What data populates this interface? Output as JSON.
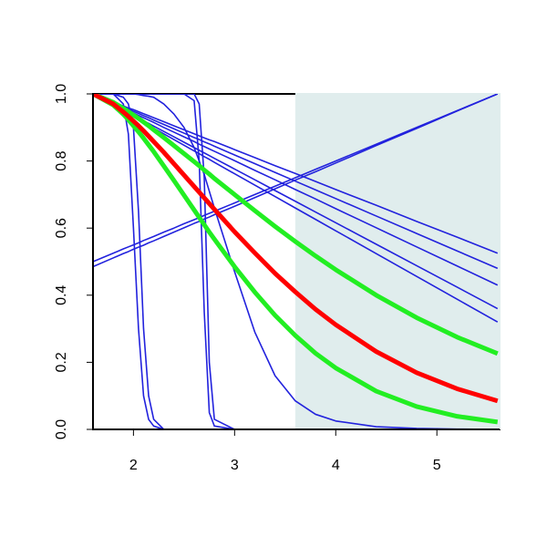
{
  "chart_data": {
    "type": "line",
    "x": [
      1.6,
      1.8,
      1.9,
      1.95,
      2.0,
      2.05,
      2.1,
      2.15,
      2.2,
      2.3,
      2.4,
      2.5,
      2.6,
      2.65,
      2.7,
      2.75,
      2.8,
      3.0,
      3.2,
      3.4,
      3.6,
      3.8,
      4.0,
      4.4,
      4.8,
      5.2,
      5.6
    ],
    "xlim": [
      1.6,
      5.62
    ],
    "ylim": [
      0,
      1
    ],
    "xticks": [
      2,
      3,
      4,
      5
    ],
    "yticks": [
      {
        "value": 0,
        "label": "0.0"
      },
      0.2,
      0.4,
      0.6,
      0.8,
      {
        "value": 1,
        "label": "1.0"
      }
    ],
    "highlight": {
      "xlim": [
        3.6,
        5.62
      ],
      "color": "#e0eded"
    },
    "series": [
      {
        "color": "#2222dd",
        "style": "thin",
        "values": [
          1,
          1,
          0.97,
          0.88,
          0.6,
          0.3,
          0.1,
          0.03,
          0.01,
          0,
          0,
          0,
          0,
          0,
          0,
          0,
          0,
          0,
          0,
          0,
          0,
          0,
          0,
          0,
          0,
          0,
          0
        ]
      },
      {
        "color": "#2222dd",
        "style": "thin",
        "values": [
          1,
          1,
          0.99,
          0.97,
          0.9,
          0.65,
          0.3,
          0.1,
          0.03,
          0,
          0,
          0,
          0,
          0,
          0,
          0,
          0,
          0,
          0,
          0,
          0,
          0,
          0,
          0,
          0,
          0,
          0
        ]
      },
      {
        "color": "#2222dd",
        "style": "thin",
        "values": [
          1,
          1,
          1,
          1,
          1,
          1,
          1,
          1,
          1,
          1,
          1,
          1,
          0.98,
          0.8,
          0.35,
          0.05,
          0.01,
          0,
          0,
          0,
          0,
          0,
          0,
          0,
          0,
          0,
          0
        ]
      },
      {
        "color": "#2222dd",
        "style": "thin",
        "values": [
          1,
          1,
          1,
          1,
          1,
          1,
          1,
          1,
          1,
          1,
          1,
          1,
          1,
          0.97,
          0.75,
          0.2,
          0.03,
          0,
          0,
          0,
          0,
          0,
          0,
          0,
          0,
          0,
          0
        ]
      },
      {
        "color": "#2222dd",
        "style": "thin",
        "values": [
          1,
          1,
          1,
          1,
          1,
          0.998,
          0.995,
          0.993,
          0.99,
          0.97,
          0.94,
          0.9,
          0.84,
          0.8,
          0.76,
          0.71,
          0.66,
          0.47,
          0.29,
          0.16,
          0.085,
          0.045,
          0.025,
          0.008,
          0.003,
          0.001,
          0
        ]
      },
      {
        "color": "#2222dd",
        "style": "thin",
        "values": [
          1,
          0.976,
          0.964,
          0.958,
          0.953,
          0.947,
          0.941,
          0.935,
          0.929,
          0.917,
          0.905,
          0.893,
          0.881,
          0.875,
          0.869,
          0.863,
          0.858,
          0.834,
          0.81,
          0.786,
          0.763,
          0.739,
          0.715,
          0.668,
          0.62,
          0.573,
          0.525
        ]
      },
      {
        "color": "#2222dd",
        "style": "thin",
        "values": [
          1,
          0.974,
          0.961,
          0.955,
          0.948,
          0.942,
          0.935,
          0.929,
          0.922,
          0.909,
          0.896,
          0.883,
          0.87,
          0.864,
          0.857,
          0.851,
          0.844,
          0.818,
          0.792,
          0.766,
          0.74,
          0.714,
          0.688,
          0.636,
          0.584,
          0.532,
          0.48
        ]
      },
      {
        "color": "#2222dd",
        "style": "thin",
        "values": [
          1,
          0.972,
          0.957,
          0.95,
          0.943,
          0.936,
          0.929,
          0.922,
          0.915,
          0.9,
          0.886,
          0.872,
          0.858,
          0.85,
          0.843,
          0.836,
          0.829,
          0.801,
          0.772,
          0.744,
          0.715,
          0.687,
          0.658,
          0.601,
          0.544,
          0.487,
          0.43
        ]
      },
      {
        "color": "#2222dd",
        "style": "thin",
        "values": [
          1,
          0.968,
          0.952,
          0.944,
          0.936,
          0.928,
          0.92,
          0.912,
          0.904,
          0.888,
          0.872,
          0.856,
          0.84,
          0.832,
          0.824,
          0.816,
          0.808,
          0.776,
          0.744,
          0.712,
          0.68,
          0.648,
          0.616,
          0.552,
          0.488,
          0.424,
          0.36
        ]
      },
      {
        "color": "#2222dd",
        "style": "thin",
        "values": [
          1,
          0.966,
          0.949,
          0.941,
          0.932,
          0.924,
          0.915,
          0.907,
          0.898,
          0.881,
          0.864,
          0.847,
          0.83,
          0.822,
          0.813,
          0.805,
          0.796,
          0.762,
          0.728,
          0.694,
          0.66,
          0.626,
          0.592,
          0.524,
          0.456,
          0.388,
          0.32
        ]
      },
      {
        "color": "#2222dd",
        "style": "thin",
        "values": [
          0.5,
          0.525,
          0.538,
          0.544,
          0.55,
          0.556,
          0.563,
          0.569,
          0.575,
          0.588,
          0.6,
          0.613,
          0.625,
          0.631,
          0.638,
          0.644,
          0.65,
          0.675,
          0.7,
          0.725,
          0.75,
          0.775,
          0.8,
          0.85,
          0.9,
          0.95,
          1
        ]
      },
      {
        "color": "#2222dd",
        "style": "thin",
        "values": [
          0.485,
          0.511,
          0.524,
          0.53,
          0.537,
          0.543,
          0.549,
          0.556,
          0.562,
          0.575,
          0.588,
          0.601,
          0.614,
          0.62,
          0.627,
          0.633,
          0.64,
          0.665,
          0.691,
          0.717,
          0.743,
          0.768,
          0.794,
          0.846,
          0.897,
          0.949,
          1
        ]
      },
      {
        "color": "#22ee22",
        "style": "thick",
        "values": [
          1,
          0.975,
          0.957,
          0.947,
          0.937,
          0.927,
          0.916,
          0.905,
          0.893,
          0.87,
          0.846,
          0.822,
          0.798,
          0.786,
          0.773,
          0.761,
          0.748,
          0.7,
          0.652,
          0.605,
          0.56,
          0.517,
          0.476,
          0.4,
          0.333,
          0.275,
          0.226
        ]
      },
      {
        "color": "#22ee22",
        "style": "thick",
        "values": [
          1,
          0.967,
          0.939,
          0.923,
          0.905,
          0.887,
          0.868,
          0.848,
          0.828,
          0.785,
          0.742,
          0.698,
          0.654,
          0.632,
          0.61,
          0.588,
          0.567,
          0.485,
          0.409,
          0.34,
          0.28,
          0.227,
          0.183,
          0.114,
          0.068,
          0.039,
          0.022
        ]
      },
      {
        "color": "#ff0000",
        "style": "thick",
        "values": [
          1,
          0.97,
          0.946,
          0.933,
          0.919,
          0.905,
          0.89,
          0.874,
          0.858,
          0.826,
          0.792,
          0.758,
          0.724,
          0.707,
          0.69,
          0.673,
          0.656,
          0.589,
          0.526,
          0.465,
          0.41,
          0.358,
          0.312,
          0.232,
          0.169,
          0.121,
          0.085
        ]
      }
    ]
  }
}
